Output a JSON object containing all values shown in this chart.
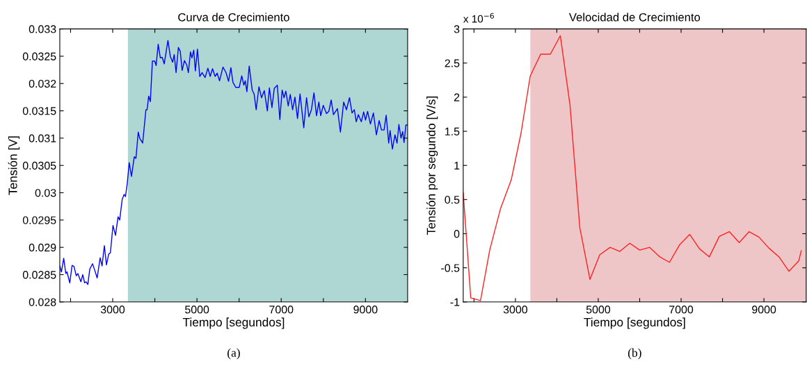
{
  "chart_data": [
    {
      "type": "line",
      "title": "Curva de Crecimiento",
      "xlabel": "Tiempo [segundos]",
      "ylabel": "Tensión [V]",
      "annotations": [
        "(a)"
      ],
      "xlim": [
        1744,
        10000
      ],
      "ylim": [
        0.028,
        0.033
      ],
      "xticks": [
        {
          "value": 2000,
          "label": null
        },
        3000,
        {
          "value": 4000,
          "label": null
        },
        5000,
        {
          "value": 6000,
          "label": null
        },
        7000,
        {
          "value": 8000,
          "label": null
        },
        9000
      ],
      "yticks": [
        0.028,
        0.0285,
        0.029,
        0.0295,
        0.03,
        0.0305,
        0.031,
        0.0315,
        0.032,
        0.0325,
        0.033
      ],
      "grid": false,
      "line_style": "solid",
      "bands": [
        {
          "axis": "x",
          "from": 3360,
          "to": 10000,
          "color": "#aed6d3"
        }
      ],
      "series": [
        {
          "color": "#0000ff",
          "x": [
            1744,
            1782,
            1837,
            1887,
            1915,
            1981,
            2036,
            2080,
            2135,
            2173,
            2245,
            2289,
            2333,
            2366,
            2410,
            2455,
            2521,
            2565,
            2631,
            2702,
            2747,
            2802,
            2851,
            2906,
            2945,
            3006,
            3066,
            3127,
            3165,
            3226,
            3270,
            3303,
            3347,
            3391,
            3446,
            3512,
            3551,
            3606,
            3645,
            3711,
            3788,
            3816,
            3854,
            3893,
            3942,
            3997,
            4030,
            4080,
            4130,
            4174,
            4223,
            4311,
            4366,
            4422,
            4460,
            4504,
            4559,
            4603,
            4648,
            4703,
            4758,
            4796,
            4846,
            4879,
            4923,
            4962,
            5011,
            5066,
            5121,
            5193,
            5259,
            5314,
            5369,
            5430,
            5479,
            5535,
            5617,
            5689,
            5750,
            5805,
            5854,
            5920,
            6003,
            6063,
            6113,
            6146,
            6185,
            6240,
            6311,
            6356,
            6405,
            6471,
            6532,
            6598,
            6670,
            6719,
            6780,
            6835,
            6907,
            6967,
            7022,
            7066,
            7110,
            7166,
            7215,
            7270,
            7325,
            7386,
            7447,
            7535,
            7601,
            7656,
            7716,
            7777,
            7838,
            7893,
            7937,
            7998,
            8075,
            8130,
            8185,
            8240,
            8334,
            8405,
            8482,
            8548,
            8620,
            8681,
            8736,
            8780,
            8830,
            8901,
            8957,
            9001,
            9050,
            9116,
            9188,
            9259,
            9325,
            9380,
            9441,
            9491,
            9551,
            9584,
            9639,
            9700,
            9749,
            9793,
            9843,
            9882,
            9915,
            9959,
            9998
          ],
          "values": [
            0.02866,
            0.02855,
            0.0288,
            0.02852,
            0.02855,
            0.02835,
            0.02867,
            0.02865,
            0.02848,
            0.02852,
            0.02837,
            0.0285,
            0.02835,
            0.02837,
            0.02832,
            0.0286,
            0.0287,
            0.0286,
            0.02844,
            0.02881,
            0.02866,
            0.02903,
            0.02868,
            0.02888,
            0.0289,
            0.0294,
            0.02922,
            0.02956,
            0.0295,
            0.02988,
            0.02997,
            0.02993,
            0.03018,
            0.03055,
            0.0303,
            0.03066,
            0.03063,
            0.03111,
            0.03099,
            0.03091,
            0.03152,
            0.03152,
            0.03177,
            0.03167,
            0.03241,
            0.03241,
            0.03233,
            0.03272,
            0.03247,
            0.03248,
            0.03236,
            0.03279,
            0.0325,
            0.03239,
            0.03253,
            0.0322,
            0.03266,
            0.03259,
            0.03224,
            0.03242,
            0.03234,
            0.0322,
            0.03258,
            0.03247,
            0.03261,
            0.03223,
            0.03263,
            0.03213,
            0.0322,
            0.03211,
            0.03228,
            0.03213,
            0.03227,
            0.03213,
            0.03219,
            0.03205,
            0.0323,
            0.0322,
            0.03204,
            0.03229,
            0.03202,
            0.03193,
            0.03193,
            0.03214,
            0.03197,
            0.03205,
            0.03185,
            0.03232,
            0.03188,
            0.03181,
            0.03152,
            0.03194,
            0.03174,
            0.03187,
            0.0315,
            0.03192,
            0.03156,
            0.03191,
            0.03197,
            0.03134,
            0.03188,
            0.03174,
            0.03186,
            0.03159,
            0.0318,
            0.03152,
            0.03175,
            0.03136,
            0.03181,
            0.03119,
            0.03174,
            0.03139,
            0.03152,
            0.03183,
            0.03141,
            0.03166,
            0.03141,
            0.0316,
            0.03145,
            0.03149,
            0.0317,
            0.03143,
            0.03154,
            0.03111,
            0.03166,
            0.03152,
            0.03174,
            0.03146,
            0.03152,
            0.0313,
            0.03143,
            0.0313,
            0.03148,
            0.03133,
            0.03149,
            0.03126,
            0.03146,
            0.03106,
            0.03132,
            0.03115,
            0.03115,
            0.03142,
            0.03091,
            0.03114,
            0.0308,
            0.03106,
            0.03091,
            0.03125,
            0.031,
            0.03112,
            0.03092,
            0.03124,
            0.03124
          ]
        }
      ]
    },
    {
      "type": "line",
      "title": "Velocidad de Crecimiento",
      "xlabel": "Tiempo [segundos]",
      "ylabel": "Tensión por segundo [V/s]",
      "annotations": [
        "x 10$^{−6}$",
        "(b)"
      ],
      "xlim": [
        1740,
        10020
      ],
      "ylim": [
        -1,
        3
      ],
      "xticks": [
        {
          "value": 2000,
          "label": null
        },
        3000,
        {
          "value": 4000,
          "label": null
        },
        5000,
        {
          "value": 6000,
          "label": null
        },
        7000,
        {
          "value": 8000,
          "label": null
        },
        9000
      ],
      "yticks": [
        -1,
        -0.5,
        0,
        0.5,
        1,
        1.5,
        2,
        2.5,
        3
      ],
      "grid": false,
      "line_style": "solid",
      "bands": [
        {
          "axis": "x",
          "from": 3360,
          "to": 10020,
          "color": "#efc6c8"
        }
      ],
      "series": [
        {
          "color": "#ff2020",
          "x": [
            1740,
            1922,
            2157,
            2380,
            2637,
            2900,
            3135,
            3358,
            3609,
            3844,
            4084,
            4319,
            4554,
            4800,
            5034,
            5286,
            5520,
            5760,
            6001,
            6241,
            6487,
            6721,
            6967,
            7207,
            7442,
            7682,
            7922,
            8163,
            8403,
            8643,
            8878,
            9118,
            9364,
            9604,
            9839,
            9900
          ],
          "values": [
            0.6,
            -0.94,
            -0.98,
            -0.24,
            0.36,
            0.79,
            1.47,
            2.31,
            2.63,
            2.63,
            2.9,
            1.88,
            0.09,
            -0.67,
            -0.31,
            -0.2,
            -0.26,
            -0.14,
            -0.24,
            -0.2,
            -0.34,
            -0.42,
            -0.16,
            -0.01,
            -0.22,
            -0.34,
            -0.04,
            0.03,
            -0.13,
            0.03,
            -0.05,
            -0.21,
            -0.34,
            -0.55,
            -0.4,
            -0.25
          ]
        }
      ]
    }
  ]
}
